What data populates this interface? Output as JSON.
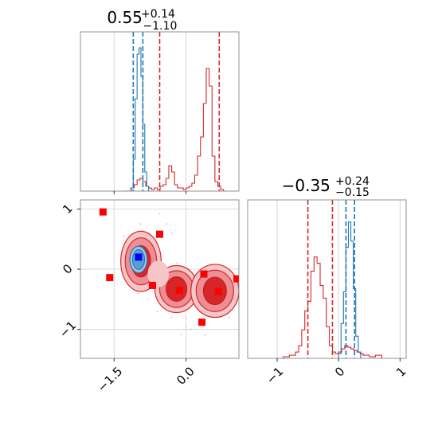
{
  "chart_data": [
    {
      "type": "histogram",
      "panel": "top-left",
      "title_base": "0.55",
      "title_sup": "+0.14",
      "title_sub": "−1.10",
      "xlim": [
        -2.2,
        1.1
      ],
      "grid": true,
      "series": [
        {
          "color": "#d62728",
          "x": [
            -1.3,
            -1.15,
            -1.08,
            -1.02,
            -0.96,
            -0.9,
            -0.84,
            -0.78,
            -0.72,
            -0.66,
            -0.6,
            -0.54,
            -0.48,
            -0.42,
            -0.36,
            -0.3,
            -0.24,
            -0.18,
            -0.12,
            -0.06,
            0.0,
            0.06,
            0.12,
            0.18,
            0.24,
            0.3,
            0.36,
            0.42,
            0.48,
            0.54,
            0.6,
            0.66,
            0.72,
            0.78
          ],
          "y": [
            0.0,
            0.02,
            0.04,
            0.07,
            0.08,
            0.06,
            0.03,
            0.02,
            0.01,
            0.02,
            0.01,
            0.03,
            0.04,
            0.08,
            0.16,
            0.12,
            0.04,
            0.02,
            0.02,
            0.01,
            0.02,
            0.03,
            0.05,
            0.1,
            0.22,
            0.34,
            0.55,
            0.77,
            0.66,
            0.22,
            0.06,
            0.03,
            0.01,
            0.0
          ]
        },
        {
          "color": "#1f77b4",
          "x": [
            -1.14,
            -1.1,
            -1.06,
            -1.02,
            -0.98,
            -0.94,
            -0.9,
            -0.86,
            -0.82,
            -0.78
          ],
          "y": [
            0.02,
            0.2,
            0.58,
            0.86,
            0.9,
            0.72,
            0.42,
            0.12,
            0.03,
            0.0
          ]
        }
      ],
      "lines": [
        {
          "x": -1.1,
          "color": "#1f77b4"
        },
        {
          "x": -0.9,
          "color": "#1f77b4"
        },
        {
          "x": -0.55,
          "color": "#d62728"
        },
        {
          "x": 0.69,
          "color": "#d62728"
        }
      ],
      "xticks": [
        -1.5,
        0.0
      ],
      "xtick_labels": [
        "−1.5",
        "0.0"
      ]
    },
    {
      "type": "contour",
      "panel": "bottom-left",
      "xlim": [
        -2.2,
        1.1
      ],
      "ylim": [
        -1.48,
        1.15
      ],
      "grid": true,
      "xticks": [
        -1.5,
        0.0
      ],
      "xtick_labels": [
        "−1.5",
        "0.0"
      ],
      "yticks": [
        -1,
        0,
        1
      ],
      "ytick_labels": [
        "−1",
        "0",
        "1"
      ],
      "red_blobs": [
        {
          "cx": -0.94,
          "cy": 0.13,
          "rx": 0.42,
          "ry": 0.5
        },
        {
          "cx": -0.2,
          "cy": -0.33,
          "rx": 0.45,
          "ry": 0.39
        },
        {
          "cx": 0.6,
          "cy": -0.36,
          "rx": 0.5,
          "ry": 0.44
        }
      ],
      "blue_blob": {
        "cx": -0.99,
        "cy": 0.16,
        "rx": 0.18,
        "ry": 0.22
      },
      "red_squares": [
        {
          "x": -1.73,
          "y": 0.95
        },
        {
          "x": -1.59,
          "y": -0.14
        },
        {
          "x": -0.55,
          "y": 0.58
        },
        {
          "x": -0.7,
          "y": -0.27
        },
        {
          "x": -0.14,
          "y": -0.35
        },
        {
          "x": 0.37,
          "y": -0.08
        },
        {
          "x": 0.67,
          "y": -0.37
        },
        {
          "x": 1.06,
          "y": -0.16
        },
        {
          "x": 0.33,
          "y": -0.88
        }
      ],
      "blue_square": {
        "x": -0.99,
        "y": 0.2
      }
    },
    {
      "type": "histogram",
      "panel": "bottom-right",
      "title_base": "−0.35",
      "title_sup": "+0.24",
      "title_sub": "−0.15",
      "xlim": [
        -1.48,
        1.1
      ],
      "grid": true,
      "xticks": [
        -1,
        0,
        1
      ],
      "xtick_labels": [
        "−1",
        "0",
        "1"
      ],
      "series": [
        {
          "color": "#d62728",
          "x": [
            -1.0,
            -0.9,
            -0.8,
            -0.7,
            -0.65,
            -0.6,
            -0.55,
            -0.5,
            -0.45,
            -0.4,
            -0.35,
            -0.3,
            -0.25,
            -0.2,
            -0.15,
            -0.1,
            -0.05,
            0.0,
            0.05,
            0.1,
            0.15,
            0.2,
            0.25,
            0.3,
            0.35,
            0.4,
            0.5,
            0.6,
            0.7
          ],
          "y": [
            0.0,
            0.01,
            0.02,
            0.04,
            0.08,
            0.18,
            0.3,
            0.36,
            0.55,
            0.64,
            0.6,
            0.46,
            0.38,
            0.2,
            0.08,
            0.04,
            0.03,
            0.04,
            0.06,
            0.08,
            0.07,
            0.06,
            0.05,
            0.04,
            0.03,
            0.02,
            0.01,
            0.02,
            0.0
          ]
        },
        {
          "color": "#1f77b4",
          "x": [
            0.0,
            0.04,
            0.08,
            0.12,
            0.16,
            0.2,
            0.24,
            0.28,
            0.32,
            0.36
          ],
          "y": [
            0.03,
            0.22,
            0.42,
            0.7,
            0.86,
            0.74,
            0.44,
            0.14,
            0.04,
            0.0
          ]
        }
      ],
      "lines": [
        {
          "x": -0.5,
          "color": "#d62728"
        },
        {
          "x": -0.1,
          "color": "#d62728"
        },
        {
          "x": 0.12,
          "color": "#1f77b4"
        },
        {
          "x": 0.26,
          "color": "#1f77b4"
        }
      ]
    }
  ]
}
